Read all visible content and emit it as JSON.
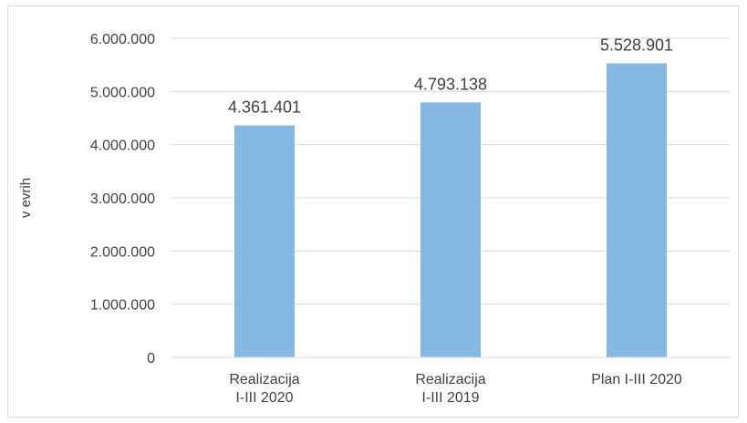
{
  "chart_data": {
    "type": "bar",
    "categories": [
      [
        "Realizacija",
        "I-III 2020"
      ],
      [
        "Realizacija",
        "I-III 2019"
      ],
      [
        "Plan I-III 2020"
      ]
    ],
    "values": [
      4361401,
      4793138,
      5528901
    ],
    "value_labels": [
      "4.361.401",
      "4.793.138",
      "5.528.901"
    ],
    "ylabel": "v evrih",
    "ylim": [
      0,
      6000000
    ],
    "yticks": [
      0,
      1000000,
      2000000,
      3000000,
      4000000,
      5000000,
      6000000
    ],
    "ytick_labels": [
      "0",
      "1.000.000",
      "2.000.000",
      "3.000.000",
      "4.000.000",
      "5.000.000",
      "6.000.000"
    ],
    "grid": true,
    "legend": "none",
    "colors": {
      "bar": "#85b8e3",
      "grid": "#d9d9d9",
      "text": "#404040"
    }
  }
}
